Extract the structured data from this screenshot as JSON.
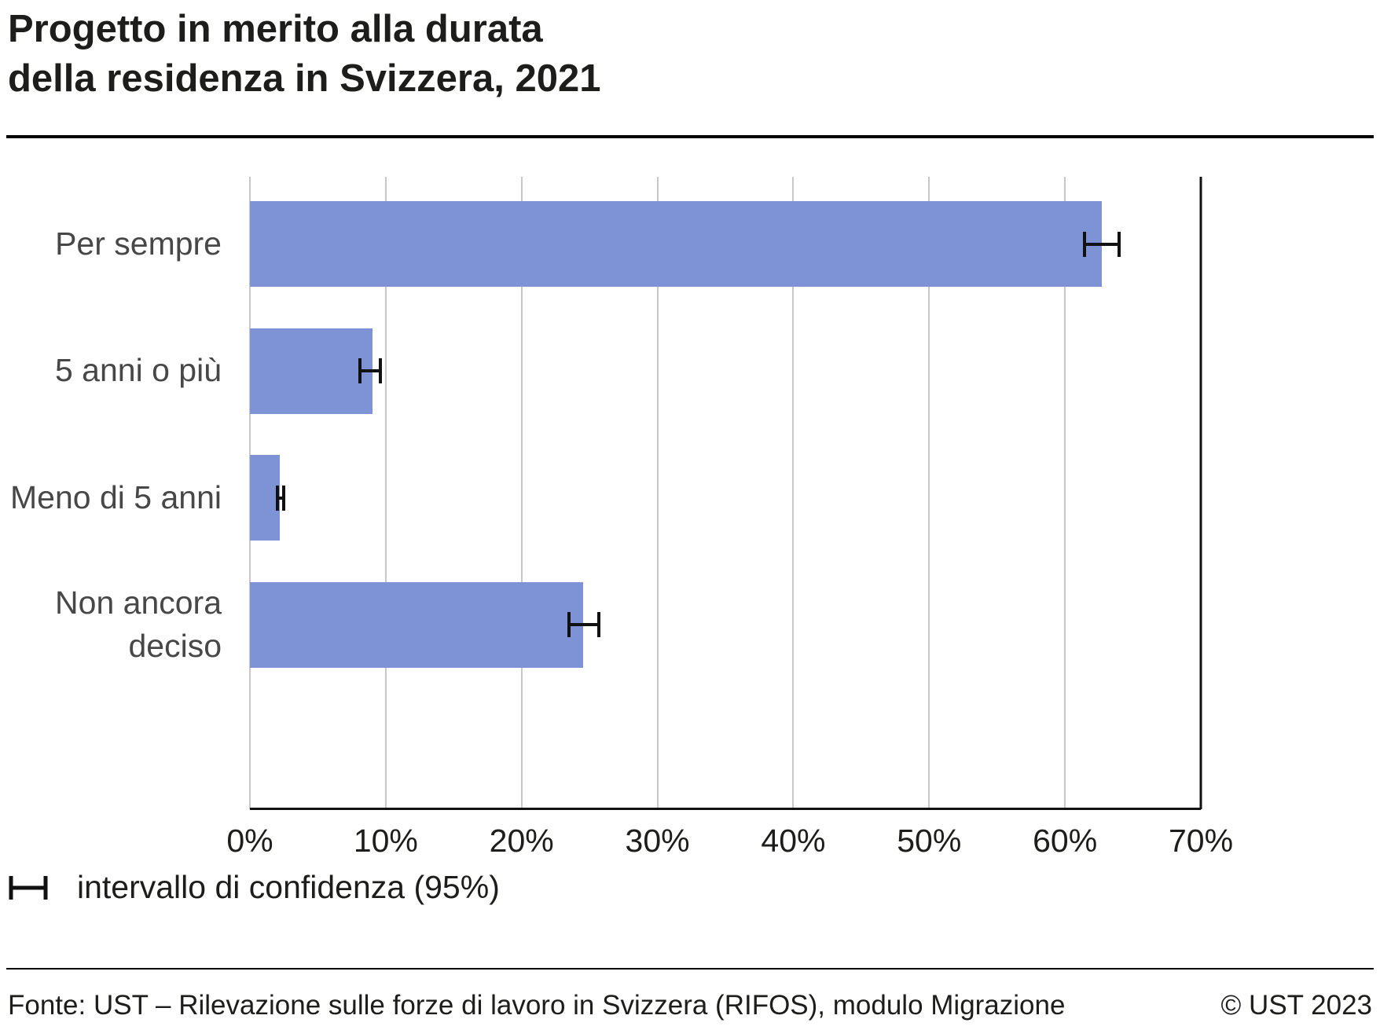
{
  "title": "Progetto in merito alla durata\ndella residenza in Svizzera, 2021",
  "chart_data": {
    "type": "bar",
    "orientation": "horizontal",
    "title": "Progetto in merito alla durata della residenza in Svizzera, 2021",
    "categories": [
      "Per sempre",
      "5 anni o più",
      "Meno di 5 anni",
      "Non ancora deciso"
    ],
    "values": [
      62.7,
      9.0,
      2.2,
      24.5
    ],
    "ci_low": [
      61.3,
      8.0,
      1.9,
      23.4
    ],
    "ci_high": [
      64.1,
      9.7,
      2.6,
      25.8
    ],
    "xlim": [
      0,
      70
    ],
    "x_ticks": [
      "0%",
      "10%",
      "20%",
      "30%",
      "40%",
      "50%",
      "60%",
      "70%"
    ],
    "unit": "%",
    "grid": true,
    "bar_color": "#7e92d6",
    "grid_color": "#c8c8c8",
    "axis_color": "#111111"
  },
  "legend": {
    "icon": "error-bar-icon",
    "label": "intervallo di confidenza (95%)"
  },
  "footer": {
    "source": "Fonte: UST – Rilevazione sulle forze di lavoro in Svizzera (RIFOS), modulo Migrazione",
    "copyright": "© UST 2023"
  }
}
